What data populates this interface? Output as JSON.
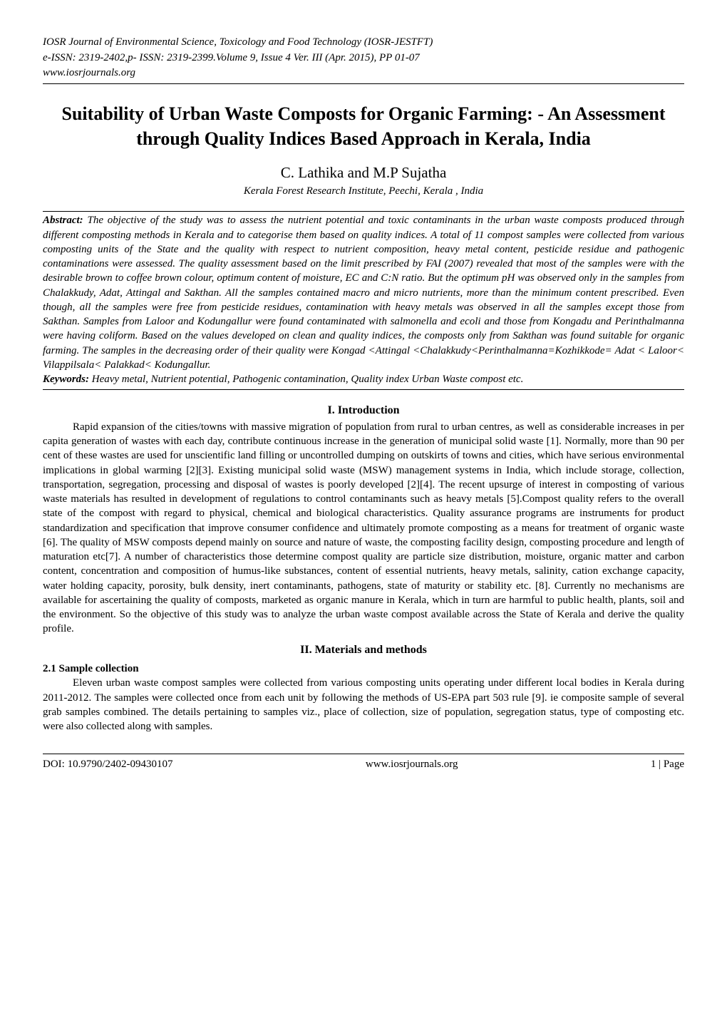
{
  "header": {
    "journal": "IOSR Journal of Environmental Science, Toxicology and Food Technology (IOSR-JESTFT)",
    "issn": "e-ISSN: 2319-2402,p- ISSN: 2319-2399.Volume 9, Issue 4 Ver. III (Apr. 2015), PP 01-07",
    "url": "www.iosrjournals.org"
  },
  "title": "Suitability of Urban Waste Composts for Organic Farming: - An Assessment through Quality Indices Based Approach in Kerala, India",
  "authors": "C. Lathika and M.P Sujatha",
  "affiliation": "Kerala Forest Research Institute, Peechi, Kerala , India",
  "abstract": {
    "label": "Abstract:",
    "text": " The objective of the study was to assess the nutrient potential and toxic contaminants in the urban waste composts produced through different composting methods in Kerala and to categorise them based on quality indices.   A total of 11 compost samples were collected from various composting units of the State and the quality with respect to nutrient composition, heavy metal content, pesticide residue and pathogenic contaminations were assessed.  The quality assessment   based on the limit prescribed by FAI (2007) revealed that most of the samples were with the desirable brown to coffee brown colour, optimum content of moisture, EC and C:N ratio. But the optimum pH was observed only in the samples from Chalakkudy, Adat, Attingal and Sakthan.  All the samples contained macro and micro nutrients,  more than the  minimum  content prescribed. Even though, all the samples were free from pesticide residues, contamination with heavy metals was observed in all the samples except those from Sakthan. Samples from Laloor and Kodungallur were found contaminated with salmonella and ecoli and those from Kongadu and Perinthalmanna were having coliform. Based on the values developed on clean and quality indices,  the composts only from Sakthan was found  suitable for organic farming.   The samples in the decreasing order of their quality were Kongad <Attingal <Chalakkudy<Perinthalmanna=Kozhikkode= Adat < Laloor< Vilappilsala< Palakkad< Kodungallur."
  },
  "keywords": {
    "label": "Keywords:",
    "text": " Heavy metal, Nutrient potential,  Pathogenic contamination, Quality index  Urban Waste compost etc."
  },
  "sections": {
    "intro": {
      "heading": "I.      Introduction",
      "text": "Rapid expansion of the cities/towns with massive migration of population from rural to urban centres, as well as considerable increases in per capita generation of wastes with each day, contribute continuous increase in the generation of municipal solid waste [1]. Normally, more than 90 per cent of these wastes are used for unscientific land filling or uncontrolled dumping on outskirts of towns and cities, which have serious environmental implications in global warming [2][3]. Existing municipal solid waste (MSW) management systems in India, which include storage, collection, transportation, segregation, processing and disposal of wastes is poorly developed [2][4]. The recent upsurge of interest in composting of various waste materials has resulted in development of regulations to control contaminants such as heavy metals [5].Compost quality refers to the overall state of the compost with regard to physical, chemical and biological characteristics. Quality assurance programs are instruments for product standardization and specification that improve consumer confidence and ultimately promote composting as a means for treatment of organic waste [6].  The quality of MSW composts depend mainly on  source and nature of waste, the composting facility design, composting procedure and length of maturation etc[7].  A number of characteristics  those determine compost quality are particle size distribution, moisture, organic matter and carbon content, concentration and composition of humus-like substances, content of essential nutrients, heavy metals, salinity, cation exchange capacity, water holding capacity, porosity, bulk density, inert contaminants, pathogens, state of maturity or stability etc. [8]. Currently  no mechanisms  are available for ascertaining the quality of  composts,  marketed  as organic manure in Kerala, which in turn are harmful to public health, plants, soil  and the environment. So the objective of this study was to  analyze the urban waste compost available across the State of Kerala and derive the  quality profile."
    },
    "methods": {
      "heading": "II.      Materials and methods",
      "subhead": "2.1 Sample collection",
      "text": "Eleven urban waste compost samples were collected from various composting units operating under different local bodies in Kerala during 2011-2012. The samples were collected once from each unit by following the methods of US-EPA part 503 rule [9]. ie composite sample of several grab samples combined. The details pertaining to samples viz., place of collection, size of population, segregation status, type of composting etc. were also collected along with samples."
    }
  },
  "footer": {
    "doi": "DOI: 10.9790/2402-09430107",
    "site": "www.iosrjournals.org",
    "page": "1 | Page"
  }
}
